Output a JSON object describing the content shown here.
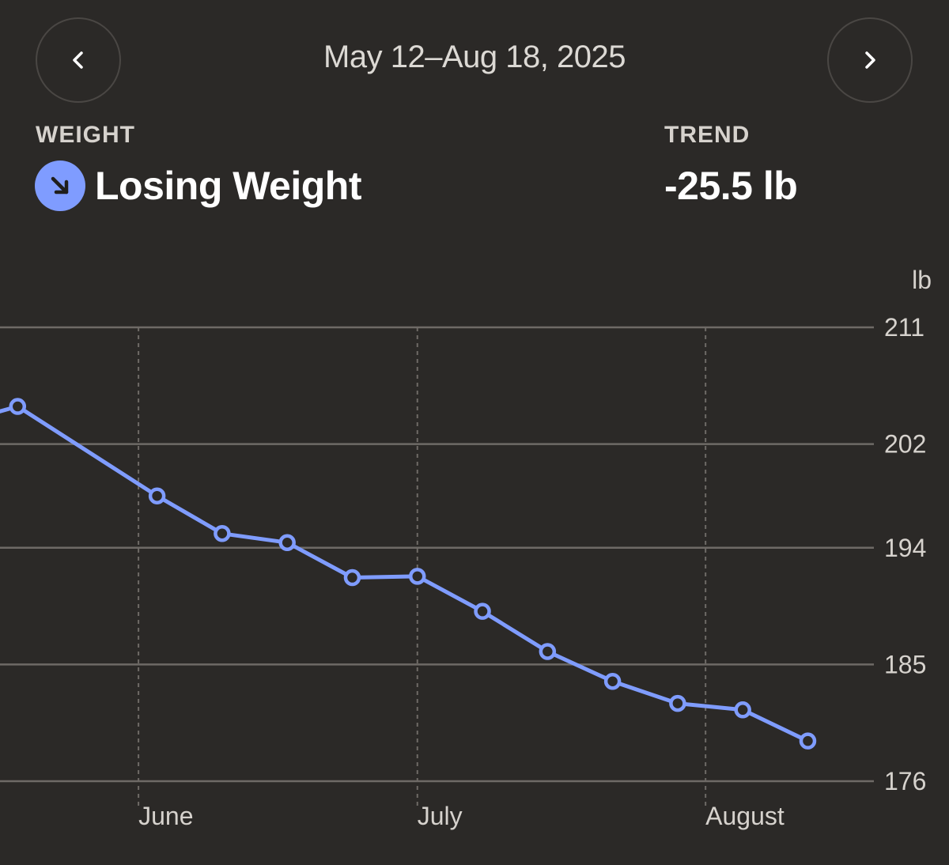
{
  "header": {
    "date_range": "May 12–Aug 18, 2025",
    "prev_icon": "chevron-left-icon",
    "next_icon": "chevron-right-icon"
  },
  "summary": {
    "weight_label": "WEIGHT",
    "status_text": "Losing Weight",
    "status_icon": "arrow-down-right-icon",
    "trend_label": "TREND",
    "trend_value": "-25.5 lb"
  },
  "colors": {
    "background": "#2b2927",
    "accent": "#7f9cff",
    "grid": "#6e6a66",
    "text_muted": "#d6d2cd"
  },
  "chart_data": {
    "type": "line",
    "unit_label": "lb",
    "ylim": [
      176,
      211
    ],
    "y_ticks": [
      "211",
      "202",
      "194",
      "185",
      "176"
    ],
    "x_tick_labels": [
      "June",
      "July",
      "August"
    ],
    "x_ticks": [
      "2025-06-01",
      "2025-07-01",
      "2025-08-01"
    ],
    "xlim": [
      "2025-05-12",
      "2025-08-18"
    ],
    "grid": true,
    "series": [
      {
        "points": [
          {
            "x": "2025-05-12",
            "y": 203.5
          },
          {
            "x": "2025-05-19",
            "y": 204.9
          },
          {
            "x": "2025-06-03",
            "y": 198.0
          },
          {
            "x": "2025-06-10",
            "y": 195.1
          },
          {
            "x": "2025-06-17",
            "y": 194.4
          },
          {
            "x": "2025-06-24",
            "y": 191.7
          },
          {
            "x": "2025-07-01",
            "y": 191.8
          },
          {
            "x": "2025-07-08",
            "y": 189.1
          },
          {
            "x": "2025-07-15",
            "y": 186.0
          },
          {
            "x": "2025-07-22",
            "y": 183.7
          },
          {
            "x": "2025-07-29",
            "y": 182.0
          },
          {
            "x": "2025-08-05",
            "y": 181.5
          },
          {
            "x": "2025-08-12",
            "y": 179.1
          }
        ]
      }
    ]
  }
}
